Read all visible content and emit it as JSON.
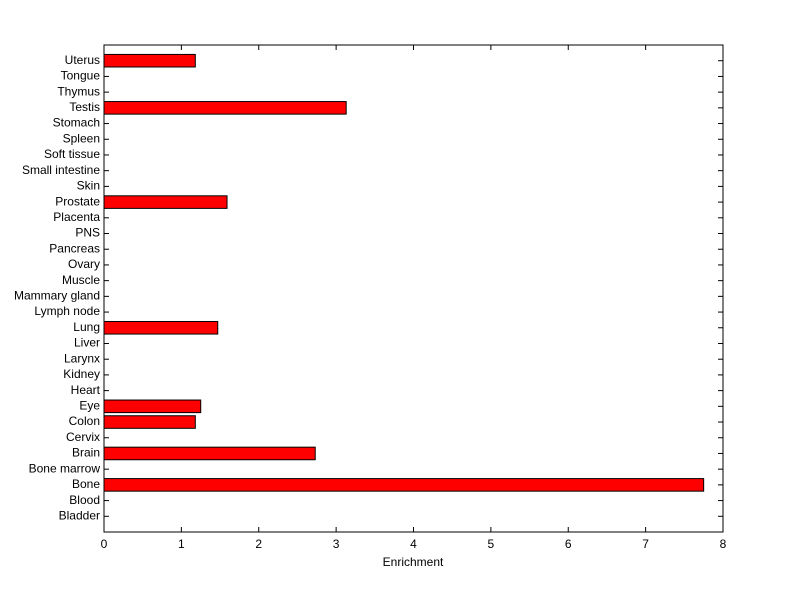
{
  "chart_data": {
    "type": "barh",
    "xlabel": "Enrichment",
    "categories": [
      "Bladder",
      "Blood",
      "Bone",
      "Bone marrow",
      "Brain",
      "Cervix",
      "Colon",
      "Eye",
      "Heart",
      "Kidney",
      "Larynx",
      "Liver",
      "Lung",
      "Lymph node",
      "Mammary gland",
      "Muscle",
      "Ovary",
      "Pancreas",
      "PNS",
      "Placenta",
      "Prostate",
      "Skin",
      "Small intestine",
      "Soft tissue",
      "Spleen",
      "Stomach",
      "Testis",
      "Thymus",
      "Tongue",
      "Uterus"
    ],
    "values": [
      0,
      0,
      7.75,
      0,
      2.73,
      0,
      1.18,
      1.25,
      0,
      0,
      0,
      0,
      1.47,
      0,
      0,
      0,
      0,
      0,
      0,
      0,
      1.59,
      0,
      0,
      0,
      0,
      0,
      3.13,
      0,
      0,
      1.18
    ],
    "color": "#ff0000",
    "xlim": [
      0,
      8
    ],
    "xticks": [
      0,
      1,
      2,
      3,
      4,
      5,
      6,
      7,
      8
    ]
  }
}
